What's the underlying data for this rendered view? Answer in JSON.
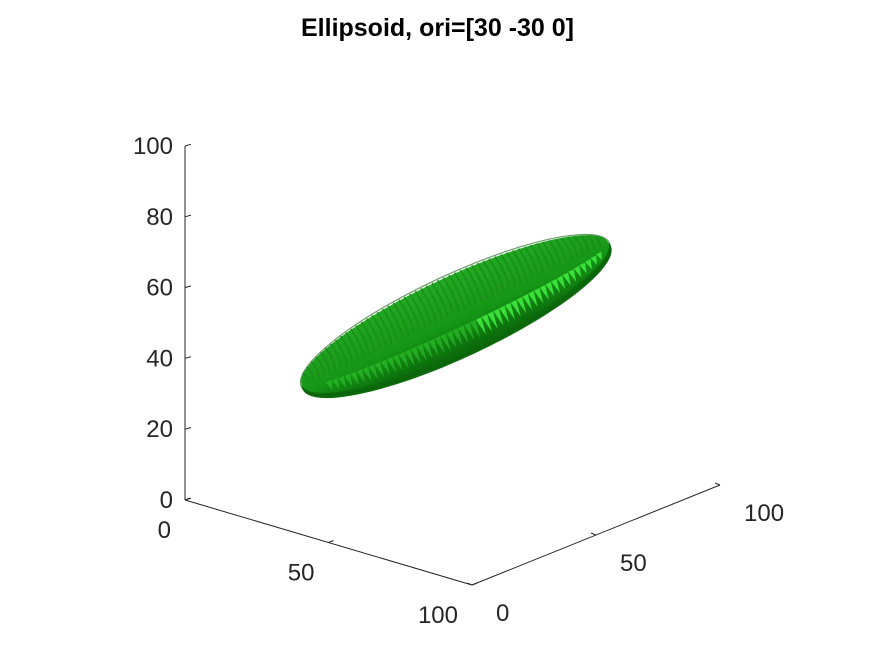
{
  "chart_data": {
    "type": "3d-surface",
    "title": "Ellipsoid, ori=[30 -30 0]",
    "xlim": [
      0,
      100
    ],
    "ylim": [
      0,
      100
    ],
    "zlim": [
      0,
      100
    ],
    "x_ticks": [
      "0",
      "50",
      "100"
    ],
    "y_ticks": [
      "0",
      "50",
      "100"
    ],
    "z_ticks": [
      "0",
      "20",
      "40",
      "60",
      "80",
      "100"
    ],
    "grid": false,
    "surface_color": "#22aa22",
    "shadow_color": "#0b6b0b",
    "highlight_color": "#3ee83e"
  }
}
